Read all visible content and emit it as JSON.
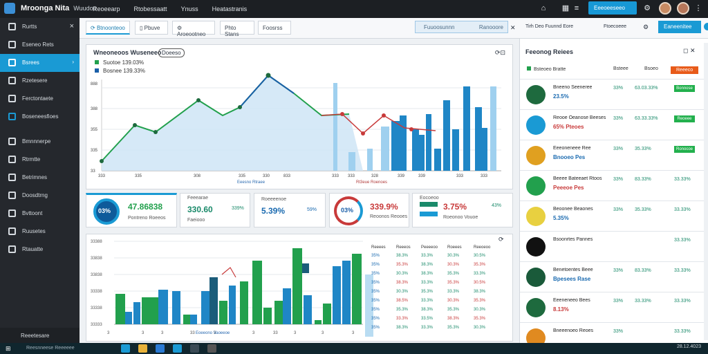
{
  "app": {
    "title": "Mroonga Nita",
    "title_suffix": "Wuudoo"
  },
  "menu": [
    "Reoeearp",
    "Rtobessaatt",
    "Ynuss",
    "Heatastranis"
  ],
  "top_button": "Eeeoeeseeo",
  "sidebar": {
    "items": [
      {
        "label": "Rurtts",
        "close": "×"
      },
      {
        "label": "Eseneo Rets"
      },
      {
        "label": "Bsrees"
      },
      {
        "label": "Rzetesere"
      },
      {
        "label": "Ferctontaete"
      },
      {
        "label": "Boseneesfioes"
      },
      {
        "label": "Bmnnnerpe"
      },
      {
        "label": "Rtrmtte"
      },
      {
        "label": "Betrimnes"
      },
      {
        "label": "Doosdtrng"
      },
      {
        "label": "Bvttoont"
      },
      {
        "label": "Ruusetes"
      },
      {
        "label": "Rtauatte"
      }
    ],
    "footer": "Reeetesare"
  },
  "tabs": [
    "Btnoonteoo",
    "Pbuve",
    "Aroeootneo",
    "Phto Stans",
    "Foosrss"
  ],
  "search": {
    "placeholder": "Fuuoosunnn",
    "right": "Ranooore"
  },
  "filters": "Tirh Deo Fuunnd Eore",
  "filter2": "Ftoecoeee",
  "search_btn": "Eaneenitee",
  "chart": {
    "title": "Wneoneoos Wuseneeo",
    "badge": "Doeeso",
    "legend": [
      "Suotoe 139.03%",
      "Bosnee 139.33%"
    ],
    "foot1": "Eeesno Rtraee",
    "foot2": "Rt3eue Roenoes"
  },
  "kpis": [
    {
      "ring": "03%",
      "big": "47.86838",
      "sub": "Pontreno Roeeos"
    },
    {
      "title": "Feeearae",
      "big": "330.60",
      "pct": "339%",
      "sub": "Faeiooo"
    },
    {
      "title": "Roeeeenoe",
      "big": "5.39%",
      "pct": "59%"
    },
    {
      "ring": "03%",
      "big": "339.9%",
      "sub": "Reoonos Reooes"
    },
    {
      "title": "Eocoeoo",
      "big": "3.75%",
      "pct": "43%",
      "sub": "Roeonoo Vouoe"
    }
  ],
  "bar_chart": {
    "footer": "Eoeeono Vaoeeoe"
  },
  "table": {
    "headers": [
      "Reeees",
      "Reeeos",
      "Peeeeoo",
      "Roeees",
      "Reeoeoo"
    ],
    "rows": [
      [
        "35%",
        "38.3%",
        "33.3%",
        "30.3%",
        "30.5%"
      ],
      [
        "35%",
        "35.3%",
        "38.3%",
        "30.3%",
        "35.3%"
      ],
      [
        "35%",
        "30.3%",
        "38.3%",
        "35.3%",
        "33.3%"
      ],
      [
        "35%",
        "38.3%",
        "33.3%",
        "35.3%",
        "30.5%"
      ],
      [
        "35%",
        "30.3%",
        "35.3%",
        "33.3%",
        "38.3%"
      ],
      [
        "35%",
        "38.5%",
        "33.3%",
        "30.3%",
        "35.3%"
      ],
      [
        "35%",
        "35.3%",
        "38.3%",
        "35.3%",
        "30.3%"
      ],
      [
        "35%",
        "33.3%",
        "33.5%",
        "38.3%",
        "35.3%"
      ],
      [
        "35%",
        "38.3%",
        "33.3%",
        "35.3%",
        "30.3%"
      ]
    ]
  },
  "right": {
    "title": "Feeonog Reiees",
    "headers": [
      "Bsteoeo Bratte",
      "Bsteee",
      "Bsoeo",
      "Reeeco"
    ],
    "rows": [
      {
        "name": "Bneeno Seeneree",
        "sub": "23.5%",
        "p1": "33%",
        "p2": "63.03.33%",
        "btn": "Bonnose"
      },
      {
        "name": "Reooe Oeanose Beeses",
        "sub": "65% Pteoes",
        "p1": "33%",
        "p2": "63.33.33%",
        "btn": "Reoeee"
      },
      {
        "name": "Eeeoneneee Ree",
        "sub": "Bnooeo Pes",
        "p1": "33%",
        "p2": "35.33%",
        "btn": "Ronocoe"
      },
      {
        "name": "Beeee Bateeaet Rtoos",
        "sub": "Peeeoe Pes",
        "p1": "33%",
        "p2": "83.33%",
        "btn": "33.33%"
      },
      {
        "name": "Beoonee Beaones",
        "sub": "5.35%",
        "p1": "33%",
        "p2": "35.33%",
        "btn": "33.33%"
      },
      {
        "name": "Bsoonrtes Pannes",
        "sub": "",
        "p1": "",
        "p2": "",
        "btn": "33.33%"
      },
      {
        "name": "Benetoentes Beee",
        "sub": "Bpesees Rase",
        "p1": "33%",
        "p2": "83.33%",
        "btn": "33.33%"
      },
      {
        "name": "Eeeneneeo Bees",
        "sub": "8.13%",
        "p1": "33%",
        "p2": "33.33%",
        "btn": "33.33%"
      },
      {
        "name": "Bneeenoeo Reoes",
        "sub": "",
        "p1": "33%",
        "p2": "",
        "btn": "33.33%"
      }
    ]
  },
  "taskbar": {
    "search": "Reesnneese Reeeeee",
    "clock": "28.12.4023"
  },
  "colors": {
    "accent": "#1a9ad4",
    "green": "#22b04d",
    "red": "#d43a3a",
    "sidebar": "#25282d"
  }
}
